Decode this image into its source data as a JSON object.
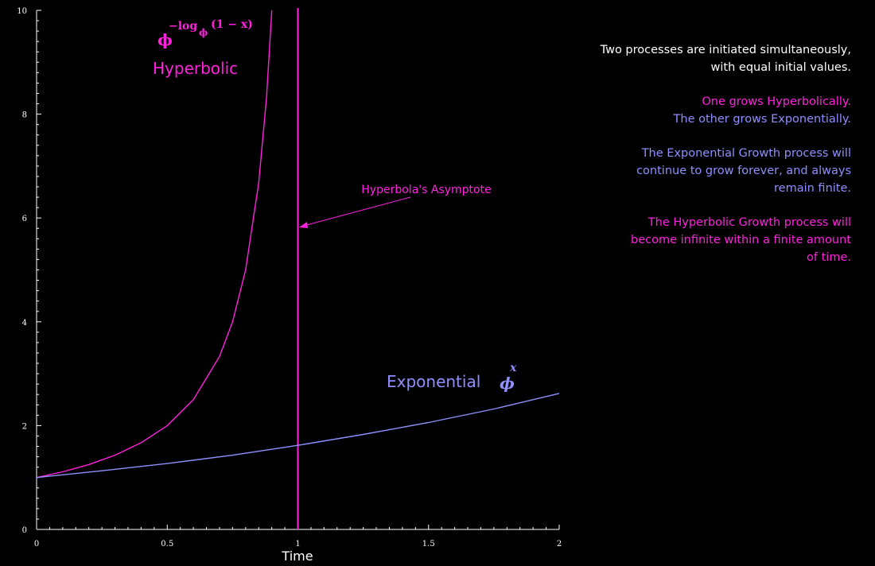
{
  "colors": {
    "background": "#000000",
    "axis": "#ffffff",
    "hyperbolic": "#ff22dd",
    "exponential": "#8f8fff",
    "text": "#ffffff"
  },
  "chart_data": {
    "type": "line",
    "xlabel": "Time",
    "xlim": [
      0,
      2
    ],
    "ylim": [
      0,
      10
    ],
    "x_ticks": [
      "0",
      "0.5",
      "1",
      "1.5",
      "2"
    ],
    "y_ticks": [
      "0",
      "2",
      "4",
      "6",
      "8",
      "10"
    ],
    "grid": false,
    "series": [
      {
        "name": "Hyperbolic",
        "formula_base": "ϕ",
        "formula_exponent": "−log",
        "formula_subscript": "ϕ",
        "formula_argument": "(1 − x)",
        "x": [
          0,
          0.1,
          0.2,
          0.3,
          0.4,
          0.5,
          0.6,
          0.7,
          0.75,
          0.8,
          0.85,
          0.88,
          0.9
        ],
        "y": [
          1.0,
          1.11,
          1.25,
          1.43,
          1.67,
          2.0,
          2.5,
          3.33,
          4.0,
          5.0,
          6.67,
          8.33,
          10.0
        ]
      },
      {
        "name": "Exponential",
        "formula_base": "ϕ",
        "formula_exponent": "x",
        "x": [
          0,
          0.25,
          0.5,
          0.75,
          1.0,
          1.25,
          1.5,
          1.75,
          2.0
        ],
        "y": [
          1.0,
          1.13,
          1.27,
          1.43,
          1.62,
          1.83,
          2.06,
          2.32,
          2.62
        ]
      }
    ],
    "asymptote": {
      "x": 1,
      "label": "Hyperbola's Asymptote"
    }
  },
  "notes": {
    "intro_line1": "Two processes are initiated simultaneously,",
    "intro_line2": "with equal initial values.",
    "growth_hyperbolic": "One grows Hyperbolically.",
    "growth_exponential": "The other grows Exponentially.",
    "exp_line1": "The Exponential Growth process will",
    "exp_line2": "continue to grow forever, and always",
    "exp_line3": "remain finite.",
    "hyp_line1": "The Hyperbolic Growth process will",
    "hyp_line2": "become infinite within a finite amount",
    "hyp_line3": "of time."
  }
}
